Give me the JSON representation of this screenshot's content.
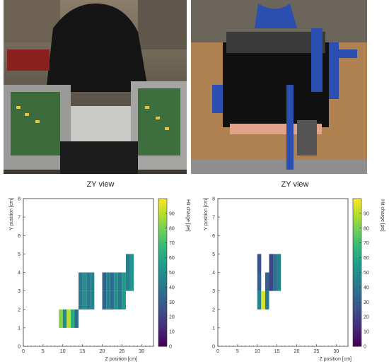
{
  "photos": [
    {
      "subject": "photo-two-detector-setups-with-readout-electronics"
    },
    {
      "subject": "photo-detector-box-with-cables"
    }
  ],
  "colors": {
    "background": "#ffffff",
    "axis": "#333333"
  },
  "colorbar": {
    "label": "Hit charge [pe]",
    "range": [
      0,
      100
    ],
    "ticks": [
      "0",
      "10",
      "20",
      "30",
      "40",
      "50",
      "60",
      "70",
      "80",
      "90"
    ],
    "colormap": "viridis"
  },
  "chart_data": [
    {
      "type": "heatmap",
      "title": "ZY view",
      "xlabel": "Z position [cm]",
      "ylabel": "Y position [cm]",
      "xlim": [
        0,
        33
      ],
      "ylim": [
        0,
        8
      ],
      "xticks": [
        "0",
        "5",
        "10",
        "15",
        "20",
        "25",
        "30"
      ],
      "yticks": [
        "0",
        "1",
        "2",
        "3",
        "4",
        "5",
        "6",
        "7",
        "8"
      ],
      "bin_width": [
        1,
        1
      ],
      "cells": [
        {
          "z": 9,
          "y": 1,
          "v": 82
        },
        {
          "z": 10,
          "y": 1,
          "v": 48
        },
        {
          "z": 11,
          "y": 1,
          "v": 90
        },
        {
          "z": 12,
          "y": 1,
          "v": 62
        },
        {
          "z": 13,
          "y": 1,
          "v": 35
        },
        {
          "z": 14,
          "y": 2,
          "v": 40
        },
        {
          "z": 15,
          "y": 2,
          "v": 50
        },
        {
          "z": 16,
          "y": 2,
          "v": 40
        },
        {
          "z": 17,
          "y": 2,
          "v": 45
        },
        {
          "z": 14,
          "y": 3,
          "v": 40
        },
        {
          "z": 15,
          "y": 3,
          "v": 50
        },
        {
          "z": 16,
          "y": 3,
          "v": 40
        },
        {
          "z": 17,
          "y": 3,
          "v": 45
        },
        {
          "z": 20,
          "y": 2,
          "v": 32
        },
        {
          "z": 21,
          "y": 2,
          "v": 45
        },
        {
          "z": 22,
          "y": 2,
          "v": 35
        },
        {
          "z": 23,
          "y": 2,
          "v": 50
        },
        {
          "z": 24,
          "y": 2,
          "v": 40
        },
        {
          "z": 25,
          "y": 2,
          "v": 55
        },
        {
          "z": 20,
          "y": 3,
          "v": 32
        },
        {
          "z": 21,
          "y": 3,
          "v": 45
        },
        {
          "z": 22,
          "y": 3,
          "v": 35
        },
        {
          "z": 23,
          "y": 3,
          "v": 50
        },
        {
          "z": 24,
          "y": 3,
          "v": 40
        },
        {
          "z": 25,
          "y": 3,
          "v": 55
        },
        {
          "z": 26,
          "y": 3,
          "v": 42
        },
        {
          "z": 27,
          "y": 3,
          "v": 52
        },
        {
          "z": 26,
          "y": 4,
          "v": 42
        },
        {
          "z": 27,
          "y": 4,
          "v": 52
        }
      ]
    },
    {
      "type": "heatmap",
      "title": "ZY view",
      "xlabel": "Z position [cm]",
      "ylabel": "Y position [cm]",
      "xlim": [
        0,
        33
      ],
      "ylim": [
        0,
        8
      ],
      "xticks": [
        "0",
        "5",
        "10",
        "15",
        "20",
        "25",
        "30"
      ],
      "yticks": [
        "0",
        "1",
        "2",
        "3",
        "4",
        "5",
        "6",
        "7",
        "8"
      ],
      "bin_width": [
        1,
        1
      ],
      "cells": [
        {
          "z": 10,
          "y": 2,
          "v": 45
        },
        {
          "z": 11,
          "y": 2,
          "v": 95
        },
        {
          "z": 12,
          "y": 2,
          "v": 42
        },
        {
          "z": 10,
          "y": 3,
          "v": 30
        },
        {
          "z": 10,
          "y": 4,
          "v": 25
        },
        {
          "z": 12,
          "y": 3,
          "v": 30
        },
        {
          "z": 13,
          "y": 3,
          "v": 20
        },
        {
          "z": 14,
          "y": 3,
          "v": 35
        },
        {
          "z": 15,
          "y": 3,
          "v": 45
        },
        {
          "z": 13,
          "y": 4,
          "v": 20
        },
        {
          "z": 14,
          "y": 4,
          "v": 35
        },
        {
          "z": 15,
          "y": 4,
          "v": 45
        }
      ]
    }
  ]
}
